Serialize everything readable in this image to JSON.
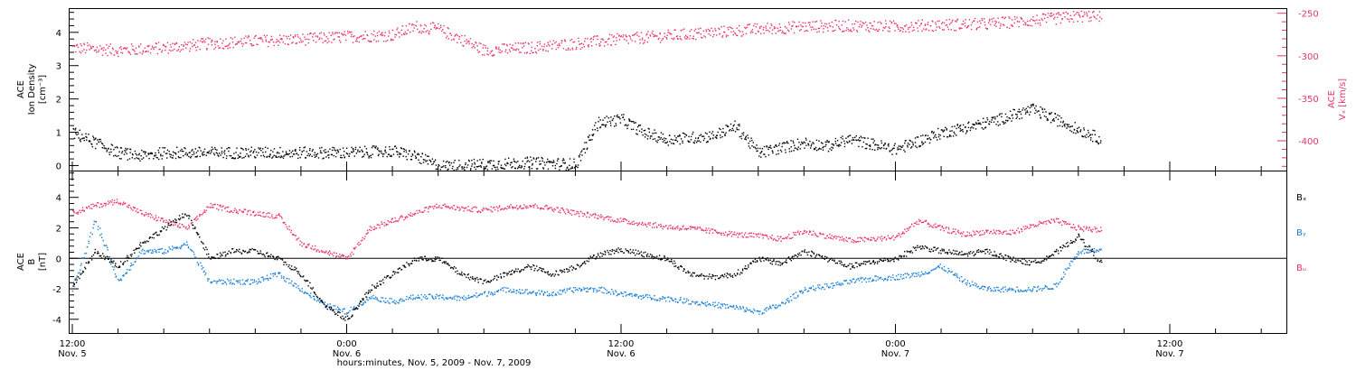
{
  "chart_data": [
    {
      "type": "scatter",
      "panel": "top",
      "ylabel_left": [
        "ACE",
        "Ion Density",
        "[cm⁻³]"
      ],
      "ylabel_right": [
        "ACE",
        "Vₓ [km/s]"
      ],
      "left_ticks": [
        "0",
        "1",
        "2",
        "3",
        "4"
      ],
      "left_ylim": [
        -0.15,
        4.7
      ],
      "right_ticks": [
        "-250",
        "-300",
        "-350",
        "-400"
      ],
      "right_ylim": [
        -435,
        -245
      ],
      "colors": {
        "density": "#000000",
        "vx": "#e8336b"
      },
      "series": [
        {
          "key": "density",
          "x": [
            0,
            2,
            3,
            4,
            6,
            8,
            10,
            12,
            14,
            15,
            16,
            18,
            20,
            22,
            23,
            24,
            25,
            26,
            28,
            29,
            30,
            32,
            33,
            34,
            36,
            38,
            40,
            42,
            44,
            45
          ],
          "y": [
            1.0,
            0.4,
            0.3,
            0.4,
            0.4,
            0.4,
            0.4,
            0.4,
            0.45,
            0.3,
            0.0,
            0.05,
            0.1,
            0.05,
            1.3,
            1.4,
            1.0,
            0.8,
            0.9,
            1.2,
            0.4,
            0.7,
            0.6,
            0.8,
            0.5,
            1.0,
            1.3,
            1.7,
            1.1,
            0.8
          ]
        },
        {
          "key": "vx",
          "x": [
            0,
            2,
            4,
            6,
            8,
            10,
            12,
            14,
            15,
            16,
            17,
            18,
            20,
            22,
            24,
            26,
            28,
            30,
            32,
            34,
            36,
            38,
            40,
            42,
            44,
            45
          ],
          "y": [
            -290,
            -293,
            -290,
            -285,
            -282,
            -280,
            -277,
            -275,
            -265,
            -268,
            -280,
            -293,
            -290,
            -285,
            -280,
            -276,
            -272,
            -268,
            -265,
            -264,
            -265,
            -263,
            -262,
            -258,
            -253,
            -252
          ]
        }
      ]
    },
    {
      "type": "scatter",
      "panel": "bottom",
      "ylabel_left": [
        "ACE",
        "B",
        "[nT]"
      ],
      "left_ticks": [
        "-4",
        "-2",
        "0",
        "2",
        "4"
      ],
      "left_ylim": [
        -4.9,
        5.7
      ],
      "legend": [
        "Bₓ",
        "Bᵧ",
        "Bᵤ"
      ],
      "legend_placement": "right",
      "colors": {
        "bx": "#000000",
        "by": "#1a7fd4",
        "bz": "#e8336b"
      },
      "series": [
        {
          "key": "bx",
          "x": [
            0,
            1,
            2,
            3,
            4,
            5,
            6,
            7,
            8,
            9,
            10,
            11,
            12,
            13,
            14,
            15,
            16,
            17,
            18,
            19,
            20,
            21,
            22,
            23,
            24,
            25,
            26,
            27,
            28,
            29,
            30,
            31,
            32,
            33,
            34,
            35,
            36,
            37,
            38,
            39,
            40,
            41,
            42,
            43,
            44,
            45
          ],
          "y": [
            -1.8,
            0.5,
            -0.5,
            1.0,
            2.0,
            3.0,
            0.0,
            0.5,
            0.5,
            0.0,
            -1.0,
            -3.0,
            -4.0,
            -2.0,
            -1.0,
            0.0,
            0.0,
            -1.0,
            -1.5,
            -1.0,
            -0.5,
            -1.0,
            -0.5,
            0.3,
            0.6,
            0.3,
            0.0,
            -1.0,
            -1.2,
            -1.0,
            0.0,
            -0.3,
            0.5,
            0.0,
            -0.5,
            -0.2,
            0.0,
            0.8,
            0.5,
            0.3,
            0.5,
            0.0,
            -0.3,
            0.4,
            1.5,
            -0.3
          ]
        },
        {
          "key": "by",
          "x": [
            0,
            1,
            2,
            3,
            4,
            5,
            6,
            7,
            8,
            9,
            10,
            11,
            12,
            13,
            14,
            15,
            16,
            17,
            18,
            19,
            20,
            21,
            22,
            23,
            24,
            25,
            26,
            27,
            28,
            29,
            30,
            31,
            32,
            33,
            34,
            35,
            36,
            37,
            38,
            39,
            40,
            41,
            42,
            43,
            44,
            45
          ],
          "y": [
            -2.0,
            2.5,
            -1.5,
            0.5,
            0.5,
            1.0,
            -1.5,
            -1.5,
            -1.5,
            -1.0,
            -2.0,
            -3.0,
            -3.5,
            -2.5,
            -2.8,
            -2.5,
            -2.5,
            -2.6,
            -2.3,
            -2.0,
            -2.2,
            -2.3,
            -2.0,
            -2.0,
            -2.3,
            -2.5,
            -2.6,
            -2.8,
            -3.0,
            -3.2,
            -3.5,
            -3.0,
            -2.0,
            -1.8,
            -1.5,
            -1.3,
            -1.2,
            -1.0,
            -0.5,
            -1.5,
            -2.0,
            -2.0,
            -2.0,
            -1.8,
            0.5,
            0.5
          ]
        },
        {
          "key": "bz",
          "x": [
            0,
            1,
            2,
            3,
            4,
            5,
            6,
            7,
            8,
            9,
            10,
            11,
            12,
            13,
            14,
            15,
            16,
            17,
            18,
            19,
            20,
            21,
            22,
            23,
            24,
            25,
            26,
            27,
            28,
            29,
            30,
            31,
            32,
            33,
            34,
            35,
            36,
            37,
            38,
            39,
            40,
            41,
            42,
            43,
            44,
            45
          ],
          "y": [
            3.0,
            3.5,
            3.8,
            3.0,
            2.5,
            2.0,
            3.5,
            3.2,
            3.0,
            2.8,
            1.0,
            0.5,
            0.0,
            2.0,
            2.5,
            3.0,
            3.5,
            3.3,
            3.2,
            3.4,
            3.5,
            3.3,
            3.0,
            2.8,
            2.5,
            2.3,
            2.1,
            2.0,
            1.8,
            1.6,
            1.5,
            1.3,
            1.8,
            1.5,
            1.2,
            1.3,
            1.4,
            2.5,
            2.0,
            1.6,
            1.8,
            1.7,
            2.2,
            2.5,
            2.0,
            1.9
          ]
        }
      ]
    }
  ],
  "x_axis": {
    "tick_labels": [
      {
        "time": "12:00",
        "date": "Nov. 5"
      },
      {
        "time": "0:00",
        "date": "Nov. 6"
      },
      {
        "time": "12:00",
        "date": "Nov. 6"
      },
      {
        "time": "0:00",
        "date": "Nov. 7"
      },
      {
        "time": "12:00",
        "date": "Nov. 7"
      }
    ],
    "xlabel": "hours:minutes, Nov.  5, 2009 - Nov.  7, 2009"
  }
}
